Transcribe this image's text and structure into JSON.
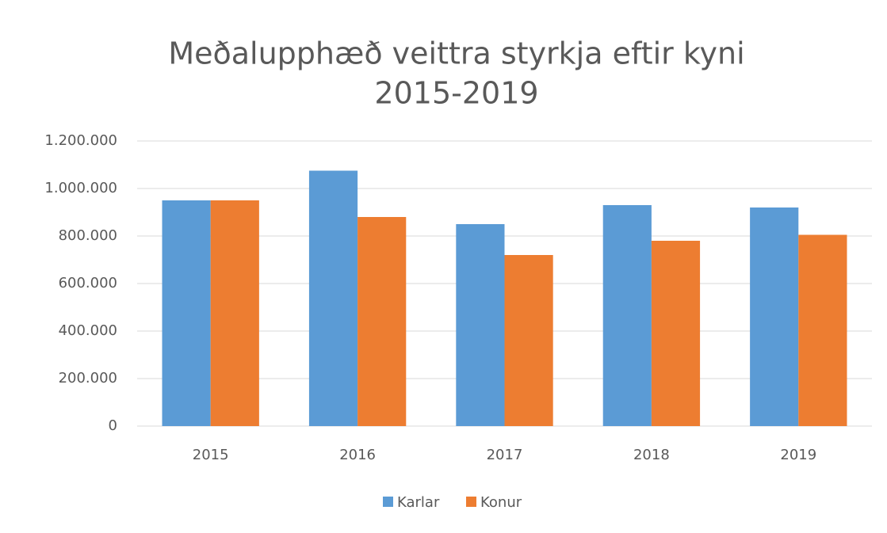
{
  "chart_data": {
    "type": "bar",
    "title": [
      "Meðalupphæð veittra styrkja eftir kyni",
      "2015-2019"
    ],
    "categories": [
      "2015",
      "2016",
      "2017",
      "2018",
      "2019"
    ],
    "series": [
      {
        "name": "Karlar",
        "color": "#5b9bd5",
        "values": [
          950000,
          1075000,
          850000,
          930000,
          920000
        ]
      },
      {
        "name": "Konur",
        "color": "#ed7d31",
        "values": [
          950000,
          880000,
          720000,
          780000,
          805000
        ]
      }
    ],
    "ylim": [
      0,
      1200000
    ],
    "yticks": [
      0,
      {
        "value": 200000,
        "label": "200.000"
      },
      {
        "value": 400000,
        "label": "400.000"
      },
      {
        "value": 600000,
        "label": "600.000"
      },
      {
        "value": 800000,
        "label": "800.000"
      },
      {
        "value": 1000000,
        "label": "1.000.000"
      },
      {
        "value": 1200000,
        "label": "1.200.000"
      }
    ],
    "grid": true,
    "legend": "bottom"
  }
}
